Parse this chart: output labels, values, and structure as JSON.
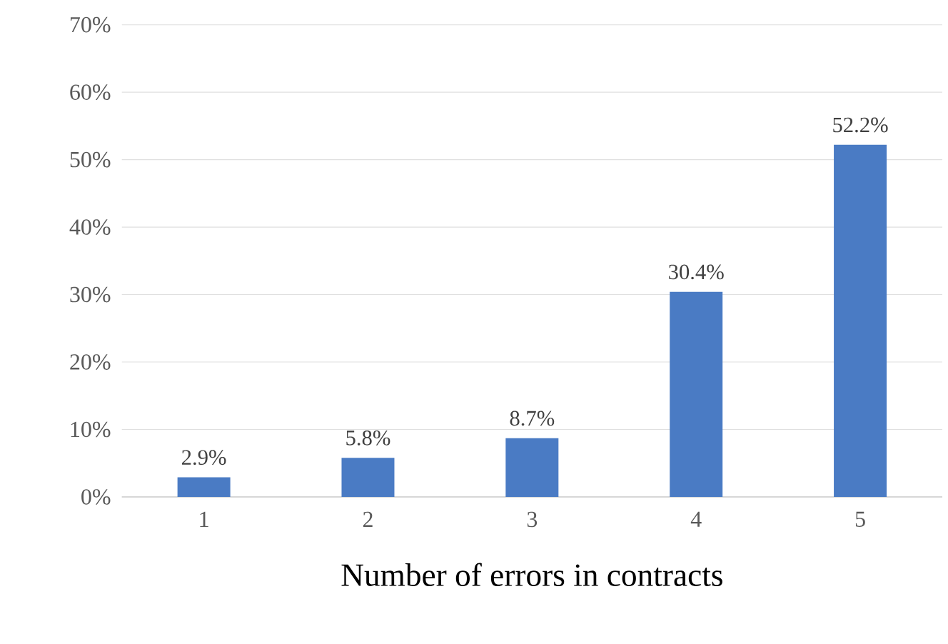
{
  "chart_data": {
    "type": "bar",
    "xlabel": "Number of errors in contracts",
    "categories": [
      "1",
      "2",
      "3",
      "4",
      "5"
    ],
    "values": [
      2.9,
      5.8,
      8.7,
      30.4,
      52.2
    ],
    "value_labels": [
      "2.9%",
      "5.8%",
      "8.7%",
      "30.4%",
      "52.2%"
    ],
    "color": "#4a7bc4",
    "ylim": [
      0,
      70
    ],
    "yticks": [
      {
        "value": 0,
        "label": "0%"
      },
      {
        "value": 10,
        "label": "10%"
      },
      {
        "value": 20,
        "label": "20%"
      },
      {
        "value": 30,
        "label": "30%"
      },
      {
        "value": 40,
        "label": "40%"
      },
      {
        "value": 50,
        "label": "50%"
      },
      {
        "value": 60,
        "label": "60%"
      },
      {
        "value": 70,
        "label": "70%"
      }
    ],
    "grid": "y"
  }
}
